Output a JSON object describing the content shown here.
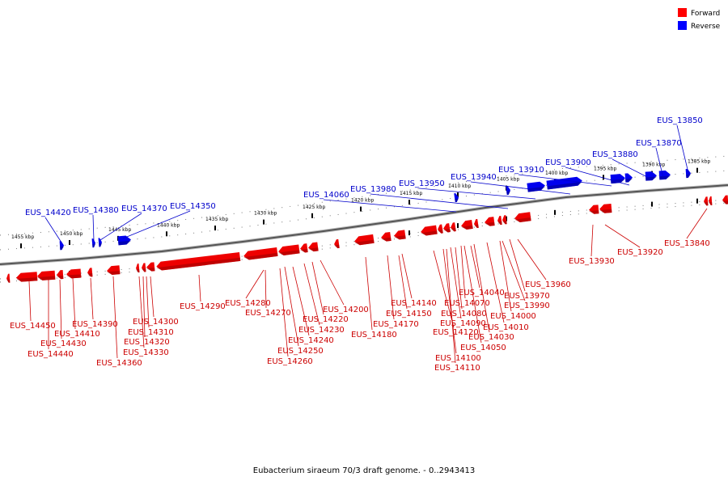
{
  "legend": [
    {
      "label": "Forward",
      "color": "#ff0000"
    },
    {
      "label": "Reverse",
      "color": "#0000ff"
    }
  ],
  "caption": "Eubacterium siraeum 70/3 draft genome. - 0..2943413",
  "colors": {
    "forward": "#ee0000",
    "forward_dark": "#990000",
    "reverse": "#0000ee",
    "reverse_dark": "#000088",
    "backbone": "#555555"
  },
  "ticks": [
    {
      "label": "1455 kbp",
      "kbp": 1455
    },
    {
      "label": "1450 kbp",
      "kbp": 1450
    },
    {
      "label": "1445 kbp",
      "kbp": 1445
    },
    {
      "label": "1440 kbp",
      "kbp": 1440
    },
    {
      "label": "1435 kbp",
      "kbp": 1435
    },
    {
      "label": "1430 kbp",
      "kbp": 1430
    },
    {
      "label": "1425 kbp",
      "kbp": 1425
    },
    {
      "label": "1420 kbp",
      "kbp": 1420
    },
    {
      "label": "1415 kbp",
      "kbp": 1415
    },
    {
      "label": "1410 kbp",
      "kbp": 1410
    },
    {
      "label": "1405 kbp",
      "kbp": 1405
    },
    {
      "label": "1400 kbp",
      "kbp": 1400
    },
    {
      "label": "1395 kbp",
      "kbp": 1395
    },
    {
      "label": "1390 kbp",
      "kbp": 1390
    },
    {
      "label": "1385 kbp",
      "kbp": 1385
    }
  ],
  "reverse_genes": [
    {
      "label": "EUS_14420"
    },
    {
      "label": "EUS_14380"
    },
    {
      "label": "EUS_14370"
    },
    {
      "label": "EUS_14350"
    },
    {
      "label": "EUS_14060"
    },
    {
      "label": "EUS_13980"
    },
    {
      "label": "EUS_13950"
    },
    {
      "label": "EUS_13940"
    },
    {
      "label": "EUS_13910"
    },
    {
      "label": "EUS_13900"
    },
    {
      "label": "EUS_13880"
    },
    {
      "label": "EUS_13870"
    },
    {
      "label": "EUS_13850"
    }
  ],
  "forward_genes_upper": [
    {
      "label": "EUS_13930"
    },
    {
      "label": "EUS_13920"
    },
    {
      "label": "EUS_13840"
    }
  ],
  "forward_genes": [
    {
      "label": "EUS_14450"
    },
    {
      "label": "EUS_14440"
    },
    {
      "label": "EUS_14430"
    },
    {
      "label": "EUS_14410"
    },
    {
      "label": "EUS_14390"
    },
    {
      "label": "EUS_14360"
    },
    {
      "label": "EUS_14330"
    },
    {
      "label": "EUS_14320"
    },
    {
      "label": "EUS_14310"
    },
    {
      "label": "EUS_14300"
    },
    {
      "label": "EUS_14290"
    },
    {
      "label": "EUS_14280"
    },
    {
      "label": "EUS_14270"
    },
    {
      "label": "EUS_14260"
    },
    {
      "label": "EUS_14250"
    },
    {
      "label": "EUS_14240"
    },
    {
      "label": "EUS_14230"
    },
    {
      "label": "EUS_14220"
    },
    {
      "label": "EUS_14200"
    },
    {
      "label": "EUS_14180"
    },
    {
      "label": "EUS_14170"
    },
    {
      "label": "EUS_14150"
    },
    {
      "label": "EUS_14140"
    },
    {
      "label": "EUS_14120"
    },
    {
      "label": "EUS_14110"
    },
    {
      "label": "EUS_14100"
    },
    {
      "label": "EUS_14090"
    },
    {
      "label": "EUS_14080"
    },
    {
      "label": "EUS_14070"
    },
    {
      "label": "EUS_14050"
    },
    {
      "label": "EUS_14040"
    },
    {
      "label": "EUS_14030"
    },
    {
      "label": "EUS_14010"
    },
    {
      "label": "EUS_14000"
    },
    {
      "label": "EUS_13990"
    },
    {
      "label": "EUS_13970"
    },
    {
      "label": "EUS_13960"
    }
  ]
}
